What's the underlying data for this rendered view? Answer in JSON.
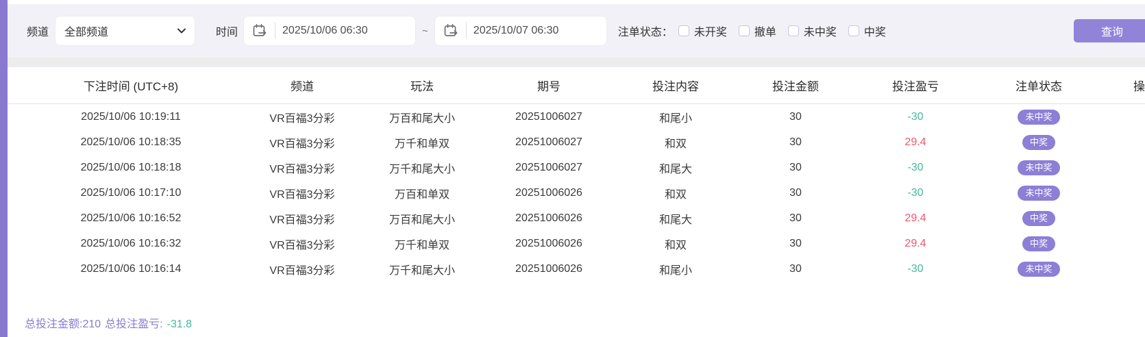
{
  "filters": {
    "channel_label": "频道",
    "channel_value": "全部频道",
    "time_label": "时间",
    "date_from": "2025/10/06 06:30",
    "date_to": "2025/10/07 06:30",
    "range_separator": "~",
    "status_label": "注单状态：",
    "status_options": [
      {
        "label": "未开奖",
        "checked": false
      },
      {
        "label": "撤单",
        "checked": false
      },
      {
        "label": "未中奖",
        "checked": false
      },
      {
        "label": "中奖",
        "checked": false
      }
    ],
    "search_button": "查询"
  },
  "table": {
    "columns": [
      "下注时间 (UTC+8)",
      "频道",
      "玩法",
      "期号",
      "投注内容",
      "投注金额",
      "投注盈亏",
      "注单状态",
      "操作"
    ],
    "rows": [
      {
        "time": "2025/10/06 10:19:11",
        "channel": "VR百福3分彩",
        "play": "万百和尾大小",
        "issue": "20251006027",
        "content": "和尾小",
        "amount": "30",
        "profit": "-30",
        "status": "未中奖"
      },
      {
        "time": "2025/10/06 10:18:35",
        "channel": "VR百福3分彩",
        "play": "万千和单双",
        "issue": "20251006027",
        "content": "和双",
        "amount": "30",
        "profit": "29.4",
        "status": "中奖"
      },
      {
        "time": "2025/10/06 10:18:18",
        "channel": "VR百福3分彩",
        "play": "万千和尾大小",
        "issue": "20251006027",
        "content": "和尾大",
        "amount": "30",
        "profit": "-30",
        "status": "未中奖"
      },
      {
        "time": "2025/10/06 10:17:10",
        "channel": "VR百福3分彩",
        "play": "万百和单双",
        "issue": "20251006026",
        "content": "和双",
        "amount": "30",
        "profit": "-30",
        "status": "未中奖"
      },
      {
        "time": "2025/10/06 10:16:52",
        "channel": "VR百福3分彩",
        "play": "万百和尾大小",
        "issue": "20251006026",
        "content": "和尾大",
        "amount": "30",
        "profit": "29.4",
        "status": "中奖"
      },
      {
        "time": "2025/10/06 10:16:32",
        "channel": "VR百福3分彩",
        "play": "万千和单双",
        "issue": "20251006026",
        "content": "和双",
        "amount": "30",
        "profit": "29.4",
        "status": "中奖"
      },
      {
        "time": "2025/10/06 10:16:14",
        "channel": "VR百福3分彩",
        "play": "万千和尾大小",
        "issue": "20251006026",
        "content": "和尾小",
        "amount": "30",
        "profit": "-30",
        "status": "未中奖"
      }
    ]
  },
  "summary": {
    "bet_total_label": "总投注金额:",
    "bet_total": "210",
    "profit_label": "总投注盈亏:",
    "profit_value": "-31.8"
  },
  "colors": {
    "accent_purple": "#8d7ed6",
    "strip_purple": "#8979cf",
    "filter_bar_bg": "#f2f1f8",
    "profit_negative_green": "#45b79c",
    "profit_positive_red": "#f0566c",
    "summary_text_purple": "#8a7ad0"
  }
}
